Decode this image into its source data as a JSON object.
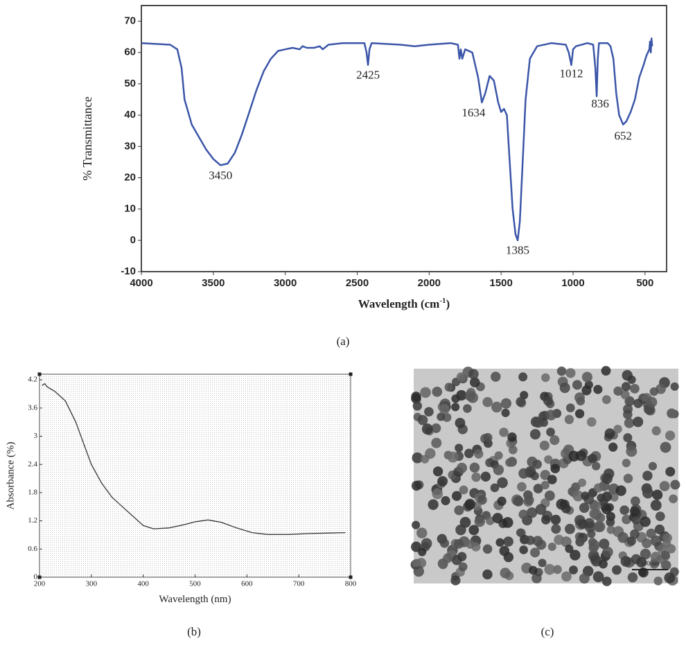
{
  "chart_data": [
    {
      "type": "line",
      "color": "#3a55a8",
      "x": [
        4000,
        3800,
        3750,
        3720,
        3700,
        3650,
        3600,
        3550,
        3500,
        3450,
        3400,
        3350,
        3300,
        3250,
        3200,
        3150,
        3100,
        3050,
        3000,
        2950,
        2900,
        2880,
        2850,
        2800,
        2760,
        2740,
        2700,
        2600,
        2450,
        2435,
        2425,
        2415,
        2400,
        2200,
        2100,
        2000,
        1850,
        1800,
        1790,
        1780,
        1770,
        1750,
        1700,
        1660,
        1634,
        1610,
        1580,
        1550,
        1520,
        1500,
        1480,
        1460,
        1440,
        1420,
        1400,
        1385,
        1370,
        1350,
        1330,
        1300,
        1250,
        1150,
        1050,
        1030,
        1012,
        1000,
        980,
        900,
        860,
        845,
        836,
        828,
        820,
        760,
        740,
        720,
        700,
        680,
        652,
        630,
        600,
        570,
        540,
        510,
        490,
        470,
        465,
        460,
        455,
        450
      ],
      "values": [
        63,
        62.5,
        61,
        55,
        45,
        37,
        33,
        29,
        26,
        24,
        24.5,
        28,
        34,
        41,
        48,
        54,
        58,
        60.5,
        61,
        61.5,
        61,
        62,
        61.5,
        61.5,
        62,
        61,
        62.5,
        63,
        63,
        60,
        56,
        61,
        63,
        62.5,
        62,
        62.5,
        63,
        62.5,
        58,
        61,
        58,
        61,
        60,
        52,
        44,
        47,
        52.5,
        51,
        44,
        41,
        42,
        40,
        25,
        10,
        2,
        0,
        6,
        25,
        45,
        58,
        62,
        63,
        62.5,
        60,
        56,
        61,
        62,
        63,
        62.5,
        55,
        46,
        58,
        63,
        63,
        62,
        58,
        47,
        40,
        37,
        38,
        41,
        45,
        52,
        56,
        59,
        61,
        63.5,
        60,
        64.5,
        62
      ],
      "xlim": [
        4000,
        350
      ],
      "ylim": [
        -10,
        75
      ],
      "xticks": [
        4000,
        3500,
        3000,
        2500,
        2000,
        1500,
        1000,
        500
      ],
      "yticks": [
        -10,
        0,
        10,
        20,
        30,
        40,
        50,
        60,
        70
      ],
      "y_label": "% Transmittance",
      "x_label": "Wavelength (cm",
      "x_label_sup": "-1",
      "x_label_end": ")",
      "annotations": [
        {
          "text": "3450",
          "x": 3450,
          "y": 24
        },
        {
          "text": "2425",
          "x": 2425,
          "y": 56
        },
        {
          "text": "1634",
          "x": 1634,
          "y": 44
        },
        {
          "text": "1385",
          "x": 1385,
          "y": 0
        },
        {
          "text": "1012",
          "x": 1012,
          "y": 56
        },
        {
          "text": "836",
          "x": 836,
          "y": 46
        },
        {
          "text": "652",
          "x": 652,
          "y": 37
        }
      ],
      "caption": "(a)"
    },
    {
      "type": "line",
      "color": "#333333",
      "x": [
        205,
        210,
        215,
        230,
        250,
        270,
        290,
        300,
        320,
        340,
        360,
        380,
        400,
        420,
        450,
        480,
        500,
        525,
        550,
        580,
        610,
        640,
        680,
        720,
        760,
        790
      ],
      "values": [
        4.08,
        4.12,
        4.05,
        3.95,
        3.75,
        3.3,
        2.7,
        2.4,
        2.0,
        1.7,
        1.5,
        1.3,
        1.1,
        1.03,
        1.05,
        1.12,
        1.18,
        1.22,
        1.17,
        1.05,
        0.95,
        0.91,
        0.91,
        0.93,
        0.94,
        0.95
      ],
      "xlim": [
        200,
        800
      ],
      "ylim": [
        0,
        4.32
      ],
      "xticks": [
        200,
        300,
        400,
        500,
        600,
        700,
        800
      ],
      "yticks": [
        0,
        0.6,
        1.2,
        1.8,
        2.4,
        3,
        3.6,
        4.2
      ],
      "grid": true,
      "y_label": "Absorbance (%)",
      "x_label": "Wavelength (nm)",
      "caption": "(b)"
    }
  ],
  "image": {
    "scale_label": "100 nm",
    "caption": "(c)"
  }
}
